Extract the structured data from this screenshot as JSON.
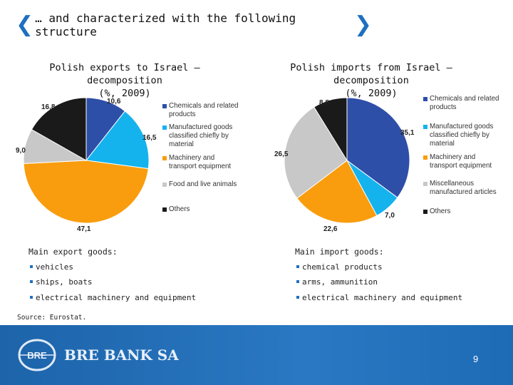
{
  "header": {
    "title": "… and characterized with the following structure"
  },
  "left": {
    "subtitle_line1": "Polish exports to Israel – decomposition",
    "subtitle_line2": "(%, 2009)",
    "legend": [
      "Chemicals and related products",
      "Manufactured goods classified chiefly by material",
      "Machinery and transport equipment",
      "Food and live animals",
      "Others"
    ],
    "goods_title": "Main export goods:",
    "goods": [
      "vehicles",
      "ships, boats",
      "electrical machinery and equipment"
    ]
  },
  "right": {
    "subtitle_line1": "Polish imports from Israel – decomposition",
    "subtitle_line2": "(%, 2009)",
    "legend": [
      "Chemicals and related products",
      "Manufactured goods classified chiefly by material",
      "Machinery and transport equipment",
      "Miscellaneous manufactured articles",
      "Others"
    ],
    "goods_title": "Main import goods:",
    "goods": [
      "chemical products",
      "arms, ammunition",
      "electrical machinery and equipment"
    ]
  },
  "source": "Source: Eurostat.",
  "footer": {
    "brand": "BRE BANK SA",
    "page_number": "9",
    "logo_text": "BRE"
  },
  "chart_data": [
    {
      "type": "pie",
      "title": "Polish exports to Israel – decomposition (%, 2009)",
      "categories": [
        "Chemicals and related products",
        "Manufactured goods classified chiefly by material",
        "Machinery and transport equipment",
        "Food and live animals",
        "Others"
      ],
      "values": [
        10.6,
        16.5,
        47.1,
        9.0,
        16.8
      ],
      "labels": [
        "10,6",
        "16,5",
        "47,1",
        "9,0",
        "16,8"
      ],
      "colors": [
        "#2e4fa8",
        "#14b3ee",
        "#f99d0e",
        "#c8c8c8",
        "#1a1a1a"
      ],
      "legend_position": "right"
    },
    {
      "type": "pie",
      "title": "Polish imports from Israel – decomposition (%, 2009)",
      "categories": [
        "Chemicals and related products",
        "Manufactured goods classified chiefly by material",
        "Machinery and transport equipment",
        "Miscellaneous manufactured articles",
        "Others"
      ],
      "values": [
        35.1,
        7.0,
        22.6,
        26.5,
        8.8
      ],
      "labels": [
        "35,1",
        "7,0",
        "22,6",
        "26,5",
        "8,8"
      ],
      "colors": [
        "#2e4fa8",
        "#14b3ee",
        "#f99d0e",
        "#c8c8c8",
        "#1a1a1a"
      ],
      "legend_position": "right"
    }
  ]
}
